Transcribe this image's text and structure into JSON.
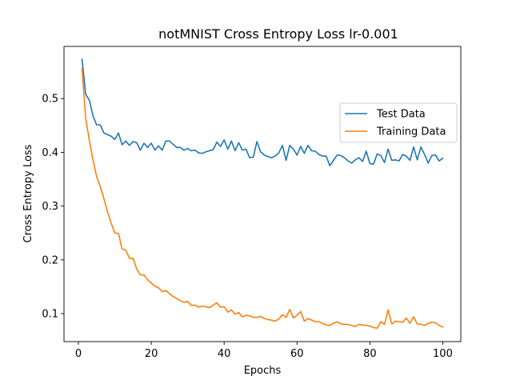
{
  "chart_data": {
    "type": "line",
    "title": "notMNIST Cross Entropy Loss lr-0.001",
    "xlabel": "Epochs",
    "ylabel": "Cross Entropy Loss",
    "xlim": [
      -3.95,
      104.95
    ],
    "ylim": [
      0.048,
      0.597
    ],
    "xticks": [
      0,
      20,
      40,
      60,
      80,
      100
    ],
    "xtick_labels": [
      "0",
      "20",
      "40",
      "60",
      "80",
      "100"
    ],
    "yticks": [
      0.1,
      0.2,
      0.3,
      0.4,
      0.5
    ],
    "ytick_labels": [
      "0.1",
      "0.2",
      "0.3",
      "0.4",
      "0.5"
    ],
    "grid": false,
    "legend_position": "center-right",
    "x": [
      1,
      2,
      3,
      4,
      5,
      6,
      7,
      8,
      9,
      10,
      11,
      12,
      13,
      14,
      15,
      16,
      17,
      18,
      19,
      20,
      21,
      22,
      23,
      24,
      25,
      26,
      27,
      28,
      29,
      30,
      31,
      32,
      33,
      34,
      35,
      36,
      37,
      38,
      39,
      40,
      41,
      42,
      43,
      44,
      45,
      46,
      47,
      48,
      49,
      50,
      51,
      52,
      53,
      54,
      55,
      56,
      57,
      58,
      59,
      60,
      61,
      62,
      63,
      64,
      65,
      66,
      67,
      68,
      69,
      70,
      71,
      72,
      73,
      74,
      75,
      76,
      77,
      78,
      79,
      80,
      81,
      82,
      83,
      84,
      85,
      86,
      87,
      88,
      89,
      90,
      91,
      92,
      93,
      94,
      95,
      96,
      97,
      98,
      99,
      100
    ],
    "series": [
      {
        "name": "Test Data",
        "color": "#1f77b4",
        "values": [
          0.573,
          0.508,
          0.497,
          0.468,
          0.451,
          0.451,
          0.436,
          0.433,
          0.43,
          0.424,
          0.436,
          0.414,
          0.421,
          0.413,
          0.42,
          0.418,
          0.404,
          0.417,
          0.409,
          0.417,
          0.404,
          0.412,
          0.404,
          0.421,
          0.421,
          0.415,
          0.409,
          0.409,
          0.404,
          0.407,
          0.403,
          0.404,
          0.399,
          0.398,
          0.401,
          0.403,
          0.405,
          0.419,
          0.411,
          0.423,
          0.406,
          0.421,
          0.403,
          0.418,
          0.404,
          0.406,
          0.39,
          0.391,
          0.42,
          0.401,
          0.395,
          0.392,
          0.39,
          0.393,
          0.399,
          0.413,
          0.385,
          0.413,
          0.406,
          0.395,
          0.411,
          0.398,
          0.413,
          0.403,
          0.402,
          0.396,
          0.393,
          0.393,
          0.375,
          0.385,
          0.395,
          0.394,
          0.39,
          0.384,
          0.38,
          0.386,
          0.39,
          0.383,
          0.402,
          0.379,
          0.378,
          0.397,
          0.394,
          0.381,
          0.406,
          0.385,
          0.386,
          0.384,
          0.396,
          0.393,
          0.385,
          0.41,
          0.386,
          0.41,
          0.396,
          0.38,
          0.394,
          0.395,
          0.384,
          0.389
        ]
      },
      {
        "name": "Training Data",
        "color": "#ff7f0e",
        "values": [
          0.557,
          0.463,
          0.423,
          0.386,
          0.355,
          0.336,
          0.314,
          0.289,
          0.268,
          0.25,
          0.249,
          0.22,
          0.218,
          0.203,
          0.203,
          0.183,
          0.172,
          0.172,
          0.163,
          0.157,
          0.151,
          0.148,
          0.141,
          0.143,
          0.137,
          0.132,
          0.128,
          0.124,
          0.121,
          0.123,
          0.115,
          0.116,
          0.112,
          0.114,
          0.113,
          0.111,
          0.116,
          0.12,
          0.112,
          0.113,
          0.103,
          0.107,
          0.099,
          0.102,
          0.094,
          0.097,
          0.096,
          0.093,
          0.093,
          0.095,
          0.091,
          0.089,
          0.088,
          0.086,
          0.09,
          0.098,
          0.093,
          0.108,
          0.092,
          0.097,
          0.104,
          0.086,
          0.091,
          0.088,
          0.085,
          0.085,
          0.082,
          0.079,
          0.078,
          0.082,
          0.085,
          0.081,
          0.08,
          0.08,
          0.078,
          0.076,
          0.08,
          0.079,
          0.078,
          0.077,
          0.074,
          0.073,
          0.085,
          0.08,
          0.107,
          0.081,
          0.086,
          0.085,
          0.084,
          0.092,
          0.082,
          0.094,
          0.081,
          0.08,
          0.078,
          0.082,
          0.084,
          0.083,
          0.078,
          0.075
        ]
      }
    ]
  }
}
